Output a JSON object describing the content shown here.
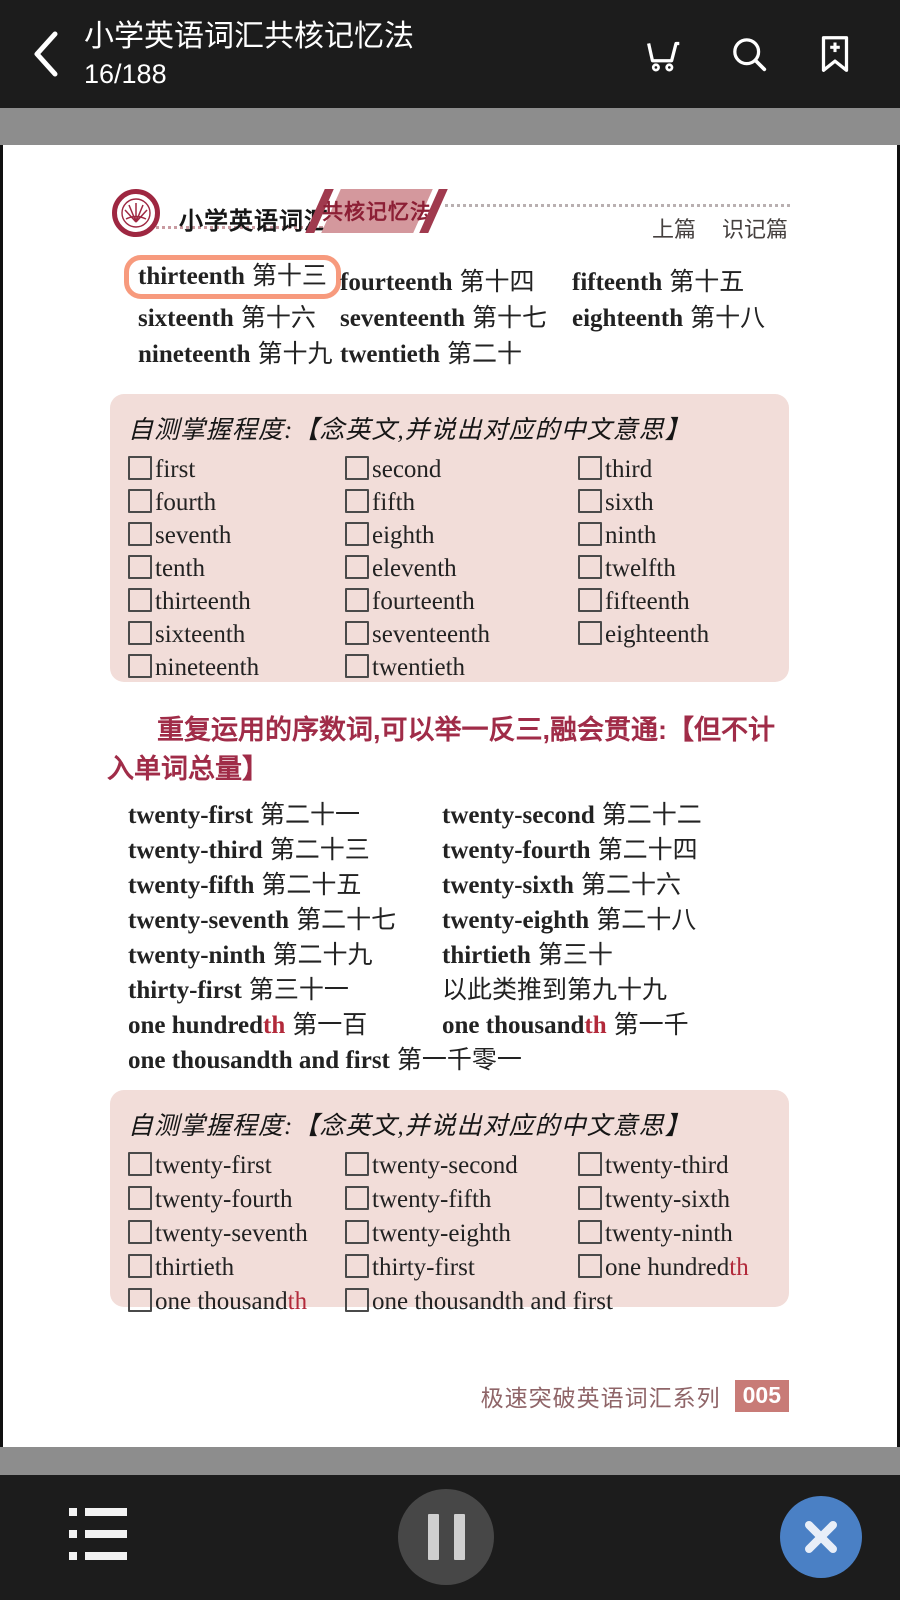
{
  "topbar": {
    "title": "小学英语词汇共核记忆法",
    "page_indicator": "16/188"
  },
  "page": {
    "header": {
      "brand": "小学英语词汇",
      "banner": "共核记忆法",
      "part_label": "上篇",
      "section_label": "识记篇"
    },
    "teens": {
      "items": [
        {
          "en": "thirteenth",
          "zh": "第十三",
          "hl": true
        },
        {
          "en": "fourteenth",
          "zh": "第十四"
        },
        {
          "en": "fifteenth",
          "zh": "第十五"
        },
        {
          "en": "sixteenth",
          "zh": "第十六"
        },
        {
          "en": "seventeenth",
          "zh": "第十七"
        },
        {
          "en": "eighteenth",
          "zh": "第十八"
        },
        {
          "en": "nineteenth",
          "zh": "第十九"
        },
        {
          "en": "twentieth",
          "zh": "第二十"
        }
      ]
    },
    "selftest1": {
      "title": "自测掌握程度:【念英文,并说出对应的中文意思】",
      "items": [
        {
          "t": "first"
        },
        {
          "t": "second"
        },
        {
          "t": "third"
        },
        {
          "t": "fourth"
        },
        {
          "t": "fifth"
        },
        {
          "t": "sixth"
        },
        {
          "t": "seventh"
        },
        {
          "t": "eighth"
        },
        {
          "t": "ninth"
        },
        {
          "t": "tenth"
        },
        {
          "t": "eleventh"
        },
        {
          "t": "twelfth"
        },
        {
          "t": "thirteenth"
        },
        {
          "t": "fourteenth"
        },
        {
          "t": "fifteenth"
        },
        {
          "t": "sixteenth"
        },
        {
          "t": "seventeenth"
        },
        {
          "t": "eighteenth"
        },
        {
          "t": "nineteenth"
        },
        {
          "t": "twentieth"
        }
      ]
    },
    "note": "重复运用的序数词,可以举一反三,融会贯通:【但不计入单词总量】",
    "twenties": {
      "items": [
        {
          "en": "twenty-first",
          "zh": "第二十一"
        },
        {
          "en": "twenty-second",
          "zh": "第二十二"
        },
        {
          "en": "twenty-third",
          "zh": "第二十三"
        },
        {
          "en": "twenty-fourth",
          "zh": "第二十四"
        },
        {
          "en": "twenty-fifth",
          "zh": "第二十五"
        },
        {
          "en": "twenty-sixth",
          "zh": "第二十六"
        },
        {
          "en": "twenty-seventh",
          "zh": "第二十七"
        },
        {
          "en": "twenty-eighth",
          "zh": "第二十八"
        },
        {
          "en": "twenty-ninth",
          "zh": "第二十九"
        },
        {
          "en": "thirtieth",
          "zh": "第三十"
        },
        {
          "en": "thirty-first",
          "zh": "第三十一"
        },
        {
          "zh": "以此类推到第九十九",
          "plain": true
        },
        {
          "en": "one hundred",
          "r": "th",
          "zh": "第一百"
        },
        {
          "en": "one thousand",
          "r": "th",
          "zh": "第一千"
        },
        {
          "en": "one thousandth and first",
          "zh": "第一千零一",
          "wide": true
        }
      ]
    },
    "selftest2": {
      "title": "自测掌握程度:【念英文,并说出对应的中文意思】",
      "items": [
        {
          "t": "twenty-first"
        },
        {
          "t": "twenty-second"
        },
        {
          "t": "twenty-third"
        },
        {
          "t": "twenty-fourth"
        },
        {
          "t": "twenty-fifth"
        },
        {
          "t": "twenty-sixth"
        },
        {
          "t": "twenty-seventh"
        },
        {
          "t": "twenty-eighth"
        },
        {
          "t": "twenty-ninth"
        },
        {
          "t": "thirtieth"
        },
        {
          "t": "thirty-first"
        },
        {
          "t": "one hundred",
          "r": "th"
        },
        {
          "t": "one thousand",
          "r": "th"
        },
        {
          "t": "one thousandth and first"
        }
      ]
    },
    "footer": {
      "series": "极速突破英语词汇系列",
      "page_no": "005"
    }
  },
  "colors": {
    "accent_red": "#a02c48",
    "red_suffix": "#b2293a",
    "highlight_border": "#f79a7d",
    "panel_pink": "#f2ddd9",
    "banner_pink": "#d4989d",
    "badge_pink": "#c87b77",
    "close_button_blue": "#4a80c5"
  }
}
